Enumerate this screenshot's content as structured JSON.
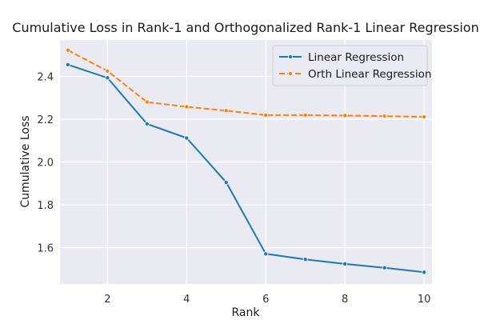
{
  "chart_data": {
    "type": "line",
    "title": "Cumulative Loss in Rank-1 and Orthogonalized Rank-1 Linear Regression",
    "xlabel": "Rank",
    "ylabel": "Cumulative Loss",
    "xlim": [
      0.8,
      10.2
    ],
    "ylim": [
      1.43,
      2.57
    ],
    "x_ticks": [
      2,
      4,
      6,
      8,
      10
    ],
    "y_ticks": [
      1.6,
      1.8,
      2.0,
      2.2,
      2.4
    ],
    "y_tick_labels": [
      "1.6",
      "1.8",
      "2.0",
      "2.2",
      "2.4"
    ],
    "grid": true,
    "legend_position": "top-right",
    "x": [
      1,
      2,
      3,
      4,
      5,
      6,
      7,
      8,
      9,
      10
    ],
    "series": [
      {
        "name": "Linear Regression",
        "color": "#1f77b4",
        "style": "solid",
        "values": [
          2.455,
          2.393,
          2.178,
          2.112,
          1.905,
          1.571,
          1.545,
          1.524,
          1.506,
          1.485
        ]
      },
      {
        "name": "Orth Linear Regression",
        "color": "#ff7f0e",
        "style": "dashed",
        "values": [
          2.522,
          2.425,
          2.28,
          2.258,
          2.24,
          2.219,
          2.219,
          2.217,
          2.214,
          2.211
        ]
      }
    ]
  },
  "colors": {
    "plot_background": "#eaeaf2",
    "grid": "#ffffff"
  }
}
